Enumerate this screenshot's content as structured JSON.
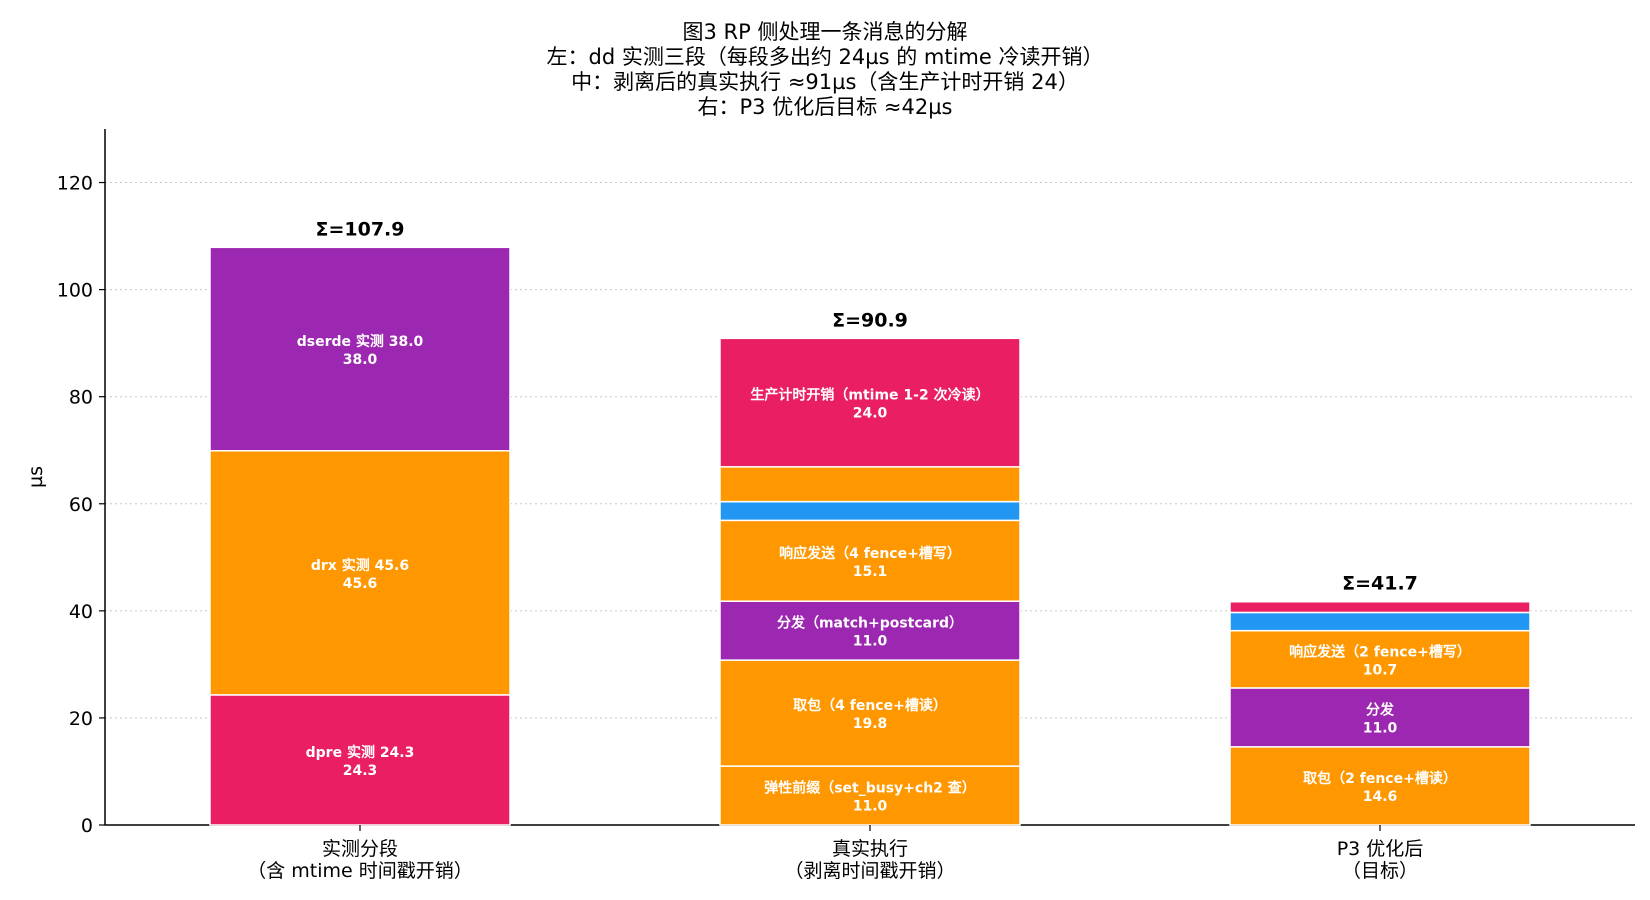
{
  "chart_data": {
    "type": "bar",
    "stacked": true,
    "title_lines": [
      "图3  RP 侧处理一条消息的分解",
      "左：dd 实测三段（每段多出约 24µs 的 mtime 冷读开销）",
      "中：剥离后的真实执行 ≈91µs（含生产计时开销 24）",
      "右：P3 优化后目标 ≈42µs"
    ],
    "ylabel": "µs",
    "ylim": [
      0,
      130
    ],
    "yticks": [
      0,
      20,
      40,
      60,
      80,
      100,
      120
    ],
    "grid": "horizontal-dotted",
    "categories": [
      [
        "实测分段",
        "（含 mtime 时间戳开销）"
      ],
      [
        "真实执行",
        "（剥离时间戳开销）"
      ],
      [
        "P3 优化后",
        "（目标）"
      ]
    ],
    "bars": [
      {
        "total_label": "Σ=107.9",
        "segments": [
          {
            "value": 24.3,
            "color": "#e91e63",
            "label": "dpre 实测 24.3",
            "value_label": "24.3"
          },
          {
            "value": 45.6,
            "color": "#ff9800",
            "label": "drx 实测 45.6",
            "value_label": "45.6"
          },
          {
            "value": 38.0,
            "color": "#9c27b0",
            "label": "dserde 实测 38.0",
            "value_label": "38.0"
          }
        ]
      },
      {
        "total_label": "Σ=90.9",
        "segments": [
          {
            "value": 11.0,
            "color": "#ff9800",
            "label": "弹性前缀（set_busy+ch2 查）",
            "value_label": "11.0"
          },
          {
            "value": 19.8,
            "color": "#ff9800",
            "label": "取包（4 fence+槽读）",
            "value_label": "19.8"
          },
          {
            "value": 11.0,
            "color": "#9c27b0",
            "label": "分发（match+postcard）",
            "value_label": "11.0"
          },
          {
            "value": 15.1,
            "color": "#ff9800",
            "label": "响应发送（4 fence+槽写）",
            "value_label": "15.1"
          },
          {
            "value": 3.5,
            "color": "#2196f3",
            "label": "",
            "value_label": ""
          },
          {
            "value": 6.5,
            "color": "#ff9800",
            "label": "",
            "value_label": ""
          },
          {
            "value": 24.0,
            "color": "#e91e63",
            "label": "生产计时开销（mtime 1-2 次冷读）",
            "value_label": "24.0"
          }
        ]
      },
      {
        "total_label": "Σ=41.7",
        "segments": [
          {
            "value": 14.6,
            "color": "#ff9800",
            "label": "取包（2 fence+槽读）",
            "value_label": "14.6"
          },
          {
            "value": 11.0,
            "color": "#9c27b0",
            "label": "分发",
            "value_label": "11.0"
          },
          {
            "value": 10.7,
            "color": "#ff9800",
            "label": "响应发送（2 fence+槽写）",
            "value_label": "10.7"
          },
          {
            "value": 3.4,
            "color": "#2196f3",
            "label": "",
            "value_label": ""
          },
          {
            "value": 2.0,
            "color": "#e91e63",
            "label": "",
            "value_label": ""
          }
        ]
      }
    ]
  }
}
